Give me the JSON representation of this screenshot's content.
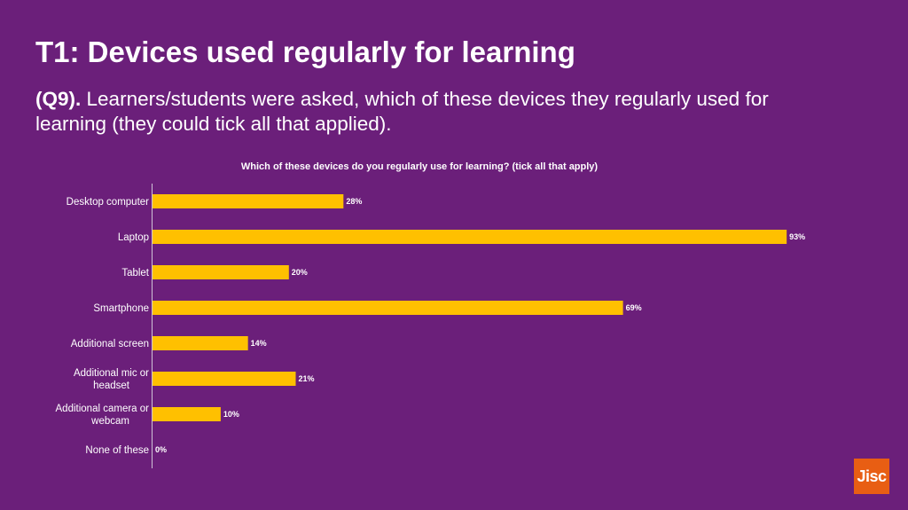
{
  "slide": {
    "title": "T1: Devices used regularly for learning",
    "question_tag": "(Q9).",
    "description": "Learners/students were asked, which of these devices they regularly used for learning (they could tick all that applied)."
  },
  "logo": {
    "text": "Jisc",
    "color": "#e85e13"
  },
  "chart_data": {
    "type": "bar",
    "orientation": "horizontal",
    "title": "Which of these devices do you regularly use for learning? (tick all that apply)",
    "categories": [
      "Desktop computer",
      "Laptop",
      "Tablet",
      "Smartphone",
      "Additional screen",
      "Additional mic or headset",
      "Additional camera or webcam",
      "None of these"
    ],
    "category_lines": [
      [
        "Desktop computer"
      ],
      [
        "Laptop"
      ],
      [
        "Tablet"
      ],
      [
        "Smartphone"
      ],
      [
        "Additional screen"
      ],
      [
        "Additional mic or",
        "headset"
      ],
      [
        "Additional camera or",
        "webcam"
      ],
      [
        "None of these"
      ]
    ],
    "values": [
      28,
      93,
      20,
      69,
      14,
      21,
      10,
      0
    ],
    "value_labels": [
      "28%",
      "93%",
      "20%",
      "69%",
      "14%",
      "21%",
      "10%",
      "0%"
    ],
    "unit": "%",
    "xlim": [
      0,
      100
    ],
    "grid": false,
    "bar_color": "#ffc000",
    "background_color": "#6b1f7a"
  }
}
